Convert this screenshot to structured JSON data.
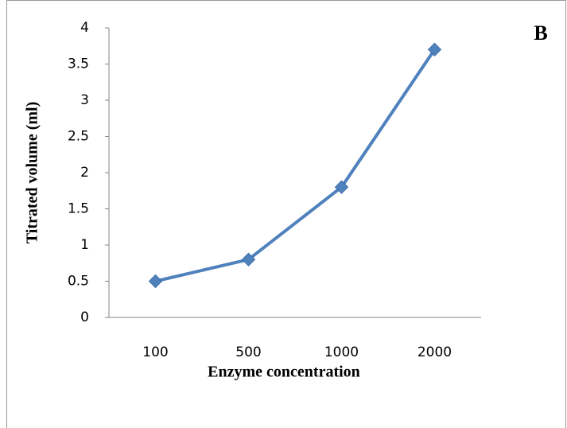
{
  "chart_data": {
    "type": "line",
    "annotation": "B",
    "x_label": "Enzyme concentration",
    "y_label": "Titrated volume (ml)",
    "categories": [
      "100",
      "500",
      "1000",
      "2000"
    ],
    "values": [
      0.5,
      0.8,
      1.8,
      3.7
    ],
    "color": "#4f81bd",
    "ylim": [
      0,
      4
    ],
    "yticks": [
      0,
      0.5,
      1,
      1.5,
      2,
      2.5,
      3,
      3.5,
      4
    ],
    "grid": false
  }
}
